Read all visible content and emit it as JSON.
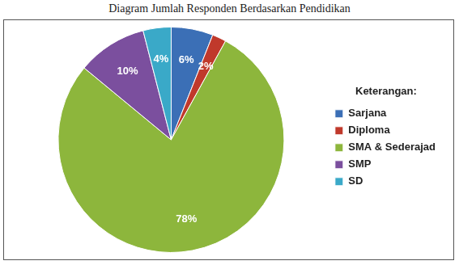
{
  "chart_data": {
    "type": "pie",
    "title": "Diagram Jumlah Responden Berdasarkan Pendidikan",
    "legend_title": "Keterangan:",
    "categories": [
      "Sarjana",
      "Diploma",
      "SMA & Sederajad",
      "SMP",
      "SD"
    ],
    "values": [
      6,
      2,
      78,
      10,
      4
    ],
    "value_labels": [
      "6%",
      "2%",
      "78%",
      "10%",
      "4%"
    ],
    "colors": [
      "#3b6fb6",
      "#c0392b",
      "#8db63c",
      "#7b4f9e",
      "#3aa9c8"
    ],
    "legend": "right",
    "data_labels": true
  }
}
